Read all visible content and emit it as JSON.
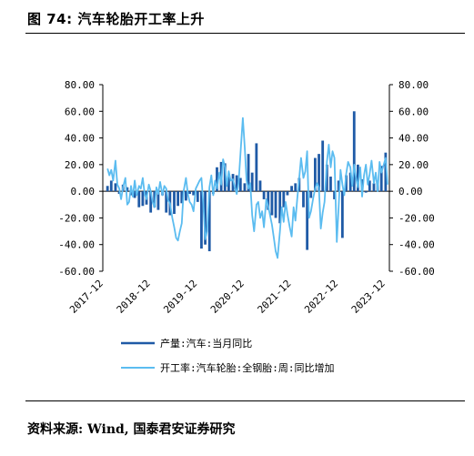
{
  "header": {
    "title": "图 74: 汽车轮胎开工率上升"
  },
  "footer": {
    "source": "资料来源: Wind, 国泰君安证券研究"
  },
  "colors": {
    "series1": "#1f5aa6",
    "series2": "#5bbcf0",
    "axis": "#000000"
  },
  "chart_data": {
    "type": "line",
    "xlabel": "",
    "ylabel": "",
    "ylim": [
      -60,
      80
    ],
    "y2lim": [
      -60,
      80
    ],
    "y_ticks": [
      "80.00",
      "60.00",
      "40.00",
      "20.00",
      "0.00",
      "-20.00",
      "-40.00",
      "-60.00"
    ],
    "y2_ticks": [
      "80.00",
      "60.00",
      "40.00",
      "20.00",
      "0.00",
      "-20.00",
      "-40.00",
      "-60.00"
    ],
    "x_ticks": [
      "2017-12",
      "2018-12",
      "2019-12",
      "2020-12",
      "2021-12",
      "2022-12",
      "2023-12"
    ],
    "xlim": [
      2017.9,
      2024.0
    ],
    "legend_position": "bottom",
    "series": [
      {
        "name": "产量:汽车:当月同比",
        "style": "bars",
        "x": [
          2018.0,
          2018.08,
          2018.17,
          2018.25,
          2018.33,
          2018.42,
          2018.5,
          2018.58,
          2018.67,
          2018.75,
          2018.83,
          2018.92,
          2019.0,
          2019.08,
          2019.17,
          2019.25,
          2019.33,
          2019.42,
          2019.5,
          2019.58,
          2019.67,
          2019.75,
          2019.83,
          2019.92,
          2020.0,
          2020.08,
          2020.17,
          2020.25,
          2020.33,
          2020.42,
          2020.5,
          2020.58,
          2020.67,
          2020.75,
          2020.83,
          2020.92,
          2021.0,
          2021.08,
          2021.17,
          2021.25,
          2021.33,
          2021.42,
          2021.5,
          2021.58,
          2021.67,
          2021.75,
          2021.83,
          2021.92,
          2022.0,
          2022.08,
          2022.17,
          2022.25,
          2022.33,
          2022.42,
          2022.5,
          2022.58,
          2022.67,
          2022.75,
          2022.83,
          2022.92,
          2023.0,
          2023.08,
          2023.17,
          2023.25,
          2023.33,
          2023.42,
          2023.5,
          2023.58,
          2023.67,
          2023.75,
          2023.83,
          2023.92
        ],
        "values": [
          4,
          8,
          6,
          -2,
          5,
          3,
          -3,
          -5,
          -12,
          -11,
          -10,
          -16,
          -12,
          -14,
          -3,
          -16,
          -18,
          -17,
          -11,
          -9,
          -7,
          -2,
          -3,
          -8,
          -43,
          -40,
          -45,
          -2,
          18,
          22,
          21,
          11,
          13,
          12,
          10,
          6,
          28,
          14,
          36,
          8,
          -6,
          -14,
          -18,
          -20,
          -24,
          -12,
          -3,
          4,
          6,
          10,
          -12,
          -44,
          -5,
          25,
          28,
          38,
          20,
          11,
          -6,
          8,
          -35,
          12,
          14,
          60,
          20,
          9,
          -1,
          8,
          6,
          8,
          19,
          29
        ]
      },
      {
        "name": "开工率:汽车轮胎:全钢胎:周:同比增加",
        "style": "line",
        "x": [
          2018.0,
          2018.04,
          2018.08,
          2018.12,
          2018.17,
          2018.21,
          2018.25,
          2018.29,
          2018.33,
          2018.38,
          2018.42,
          2018.46,
          2018.5,
          2018.54,
          2018.58,
          2018.62,
          2018.67,
          2018.71,
          2018.75,
          2018.79,
          2018.83,
          2018.88,
          2018.92,
          2018.96,
          2019.0,
          2019.04,
          2019.08,
          2019.12,
          2019.17,
          2019.21,
          2019.25,
          2019.29,
          2019.33,
          2019.38,
          2019.42,
          2019.46,
          2019.5,
          2019.54,
          2019.58,
          2019.62,
          2019.67,
          2019.71,
          2019.75,
          2019.79,
          2019.83,
          2019.88,
          2019.92,
          2019.96,
          2020.0,
          2020.04,
          2020.08,
          2020.12,
          2020.17,
          2020.21,
          2020.25,
          2020.29,
          2020.33,
          2020.38,
          2020.42,
          2020.46,
          2020.5,
          2020.54,
          2020.58,
          2020.62,
          2020.67,
          2020.71,
          2020.75,
          2020.79,
          2020.83,
          2020.88,
          2020.92,
          2020.96,
          2021.0,
          2021.04,
          2021.08,
          2021.12,
          2021.17,
          2021.21,
          2021.25,
          2021.29,
          2021.33,
          2021.38,
          2021.42,
          2021.46,
          2021.5,
          2021.54,
          2021.58,
          2021.62,
          2021.67,
          2021.71,
          2021.75,
          2021.79,
          2021.83,
          2021.88,
          2021.92,
          2021.96,
          2022.0,
          2022.04,
          2022.08,
          2022.12,
          2022.17,
          2022.21,
          2022.25,
          2022.29,
          2022.33,
          2022.38,
          2022.42,
          2022.46,
          2022.5,
          2022.54,
          2022.58,
          2022.62,
          2022.67,
          2022.71,
          2022.75,
          2022.79,
          2022.83,
          2022.88,
          2022.92,
          2022.96,
          2023.0,
          2023.04,
          2023.08,
          2023.12,
          2023.17,
          2023.21,
          2023.25,
          2023.29,
          2023.33,
          2023.38,
          2023.42,
          2023.46,
          2023.5,
          2023.54,
          2023.58,
          2023.62,
          2023.67,
          2023.71,
          2023.75,
          2023.79,
          2023.83,
          2023.88,
          2023.92,
          2023.96
        ],
        "values": [
          17,
          12,
          16,
          8,
          23,
          5,
          2,
          -6,
          3,
          10,
          -10,
          -8,
          4,
          -4,
          8,
          -3,
          4,
          2,
          10,
          -2,
          -6,
          5,
          0,
          -8,
          -12,
          3,
          -2,
          7,
          -3,
          4,
          2,
          -7,
          -9,
          -20,
          -27,
          -35,
          -37,
          -30,
          -24,
          0,
          10,
          -2,
          -8,
          -10,
          -15,
          2,
          5,
          8,
          10,
          -10,
          -36,
          -30,
          3,
          12,
          -3,
          8,
          2,
          14,
          5,
          24,
          18,
          4,
          15,
          8,
          9,
          3,
          -2,
          6,
          28,
          55,
          33,
          8,
          2,
          6,
          -18,
          -30,
          -10,
          -8,
          -20,
          -15,
          -27,
          -6,
          -11,
          -18,
          -25,
          -35,
          -45,
          -50,
          -30,
          -12,
          -23,
          -8,
          -17,
          -27,
          -34,
          -12,
          -22,
          -5,
          10,
          25,
          10,
          15,
          30,
          -20,
          -15,
          -5,
          2,
          6,
          3,
          -28,
          -16,
          -8,
          22,
          35,
          18,
          30,
          25,
          -38,
          -12,
          16,
          5,
          -3,
          13,
          22,
          18,
          4,
          20,
          10,
          3,
          18,
          -4,
          12,
          20,
          5,
          13,
          23,
          6,
          14,
          0,
          22,
          14,
          20,
          25,
          5
        ]
      }
    ]
  }
}
